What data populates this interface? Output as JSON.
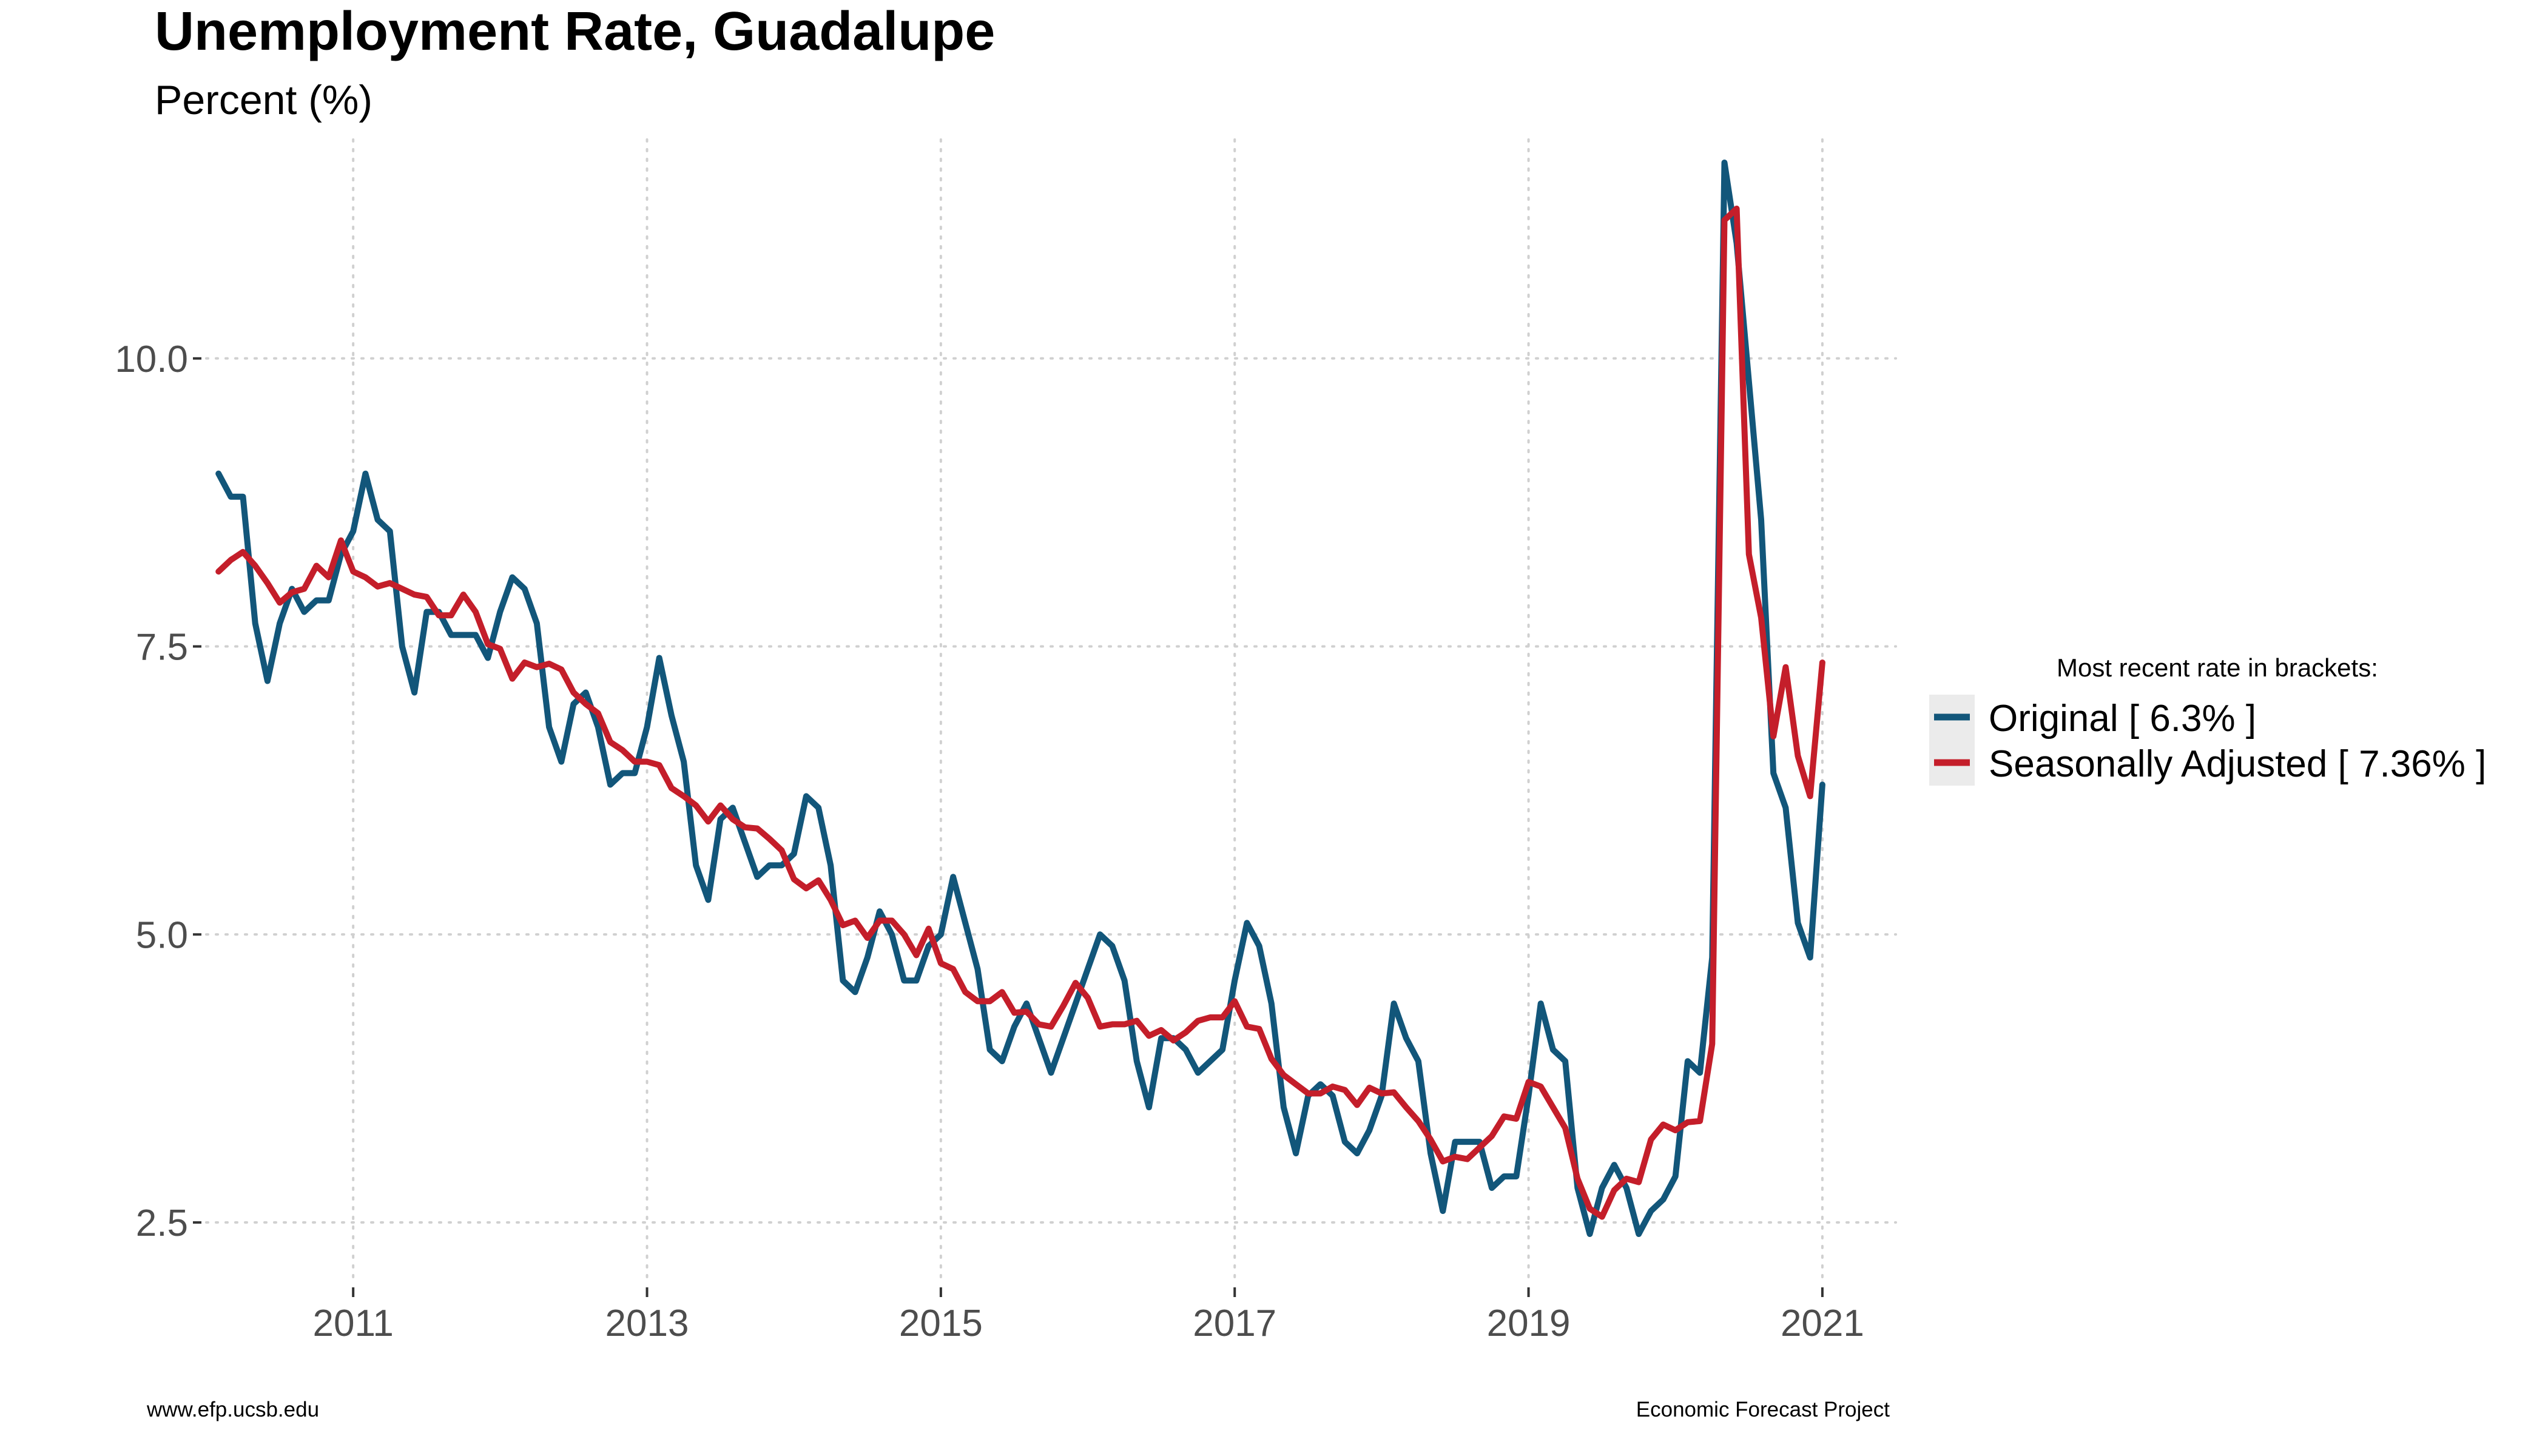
{
  "chart_data": {
    "type": "line",
    "title": "Unemployment Rate, Guadalupe",
    "subtitle": "Percent (%)",
    "xlabel": "",
    "ylabel": "",
    "xlim": [
      2010.0,
      2021.5
    ],
    "ylim": [
      2.0,
      11.9
    ],
    "x_ticks": [
      2011,
      2013,
      2015,
      2017,
      2019,
      2021
    ],
    "x_tick_labels": [
      "2011",
      "2013",
      "2015",
      "2017",
      "2019",
      "2021"
    ],
    "y_ticks": [
      2.5,
      5.0,
      7.5,
      10.0
    ],
    "y_tick_labels": [
      "2.5",
      "5.0",
      "7.5",
      "10.0"
    ],
    "grid": true,
    "legend_title": "Most recent rate in brackets:",
    "legend_position": "right",
    "x_start": 2010.0,
    "x_step": 0.0833333,
    "series": [
      {
        "name": "Original [ 6.3% ]",
        "color": "#12567a",
        "values": [
          9.0,
          8.8,
          8.8,
          7.7,
          7.2,
          7.7,
          8.0,
          7.8,
          7.9,
          7.9,
          8.3,
          8.5,
          9.0,
          8.6,
          8.5,
          7.5,
          7.1,
          7.8,
          7.8,
          7.6,
          7.6,
          7.6,
          7.4,
          7.8,
          8.1,
          8.0,
          7.7,
          6.8,
          6.5,
          7.0,
          7.1,
          6.8,
          6.3,
          6.4,
          6.4,
          6.8,
          7.4,
          6.9,
          6.5,
          5.6,
          5.3,
          6.0,
          6.1,
          5.8,
          5.5,
          5.6,
          5.6,
          5.7,
          6.2,
          6.1,
          5.6,
          4.6,
          4.5,
          4.8,
          5.2,
          5.0,
          4.6,
          4.6,
          4.9,
          5.0,
          5.5,
          5.1,
          4.7,
          4.0,
          3.9,
          4.2,
          4.4,
          4.1,
          3.8,
          4.1,
          4.4,
          4.7,
          5.0,
          4.9,
          4.6,
          3.9,
          3.5,
          4.1,
          4.1,
          4.0,
          3.8,
          3.9,
          4.0,
          4.6,
          5.1,
          4.9,
          4.4,
          3.5,
          3.1,
          3.6,
          3.7,
          3.6,
          3.2,
          3.1,
          3.3,
          3.6,
          4.4,
          4.1,
          3.9,
          3.1,
          2.6,
          3.2,
          3.2,
          3.2,
          2.8,
          2.9,
          2.9,
          3.6,
          4.4,
          4.0,
          3.9,
          2.8,
          2.4,
          2.8,
          3.0,
          2.8,
          2.4,
          2.6,
          2.7,
          2.9,
          3.9,
          3.8,
          4.8,
          11.7,
          11.0,
          9.8,
          8.6,
          6.4,
          6.1,
          5.1,
          4.8,
          6.3
        ]
      },
      {
        "name": "Seasonally Adjusted [ 7.36% ]",
        "color": "#c41e2a",
        "values": [
          8.15,
          8.25,
          8.32,
          8.2,
          8.05,
          7.88,
          7.97,
          8.0,
          8.2,
          8.1,
          8.42,
          8.15,
          8.1,
          8.02,
          8.05,
          8.0,
          7.95,
          7.93,
          7.77,
          7.77,
          7.95,
          7.8,
          7.52,
          7.48,
          7.22,
          7.36,
          7.32,
          7.35,
          7.3,
          7.1,
          7.0,
          6.92,
          6.67,
          6.6,
          6.5,
          6.5,
          6.47,
          6.27,
          6.2,
          6.12,
          5.98,
          6.12,
          6.0,
          5.93,
          5.92,
          5.83,
          5.73,
          5.48,
          5.4,
          5.47,
          5.3,
          5.08,
          5.12,
          4.97,
          5.12,
          5.12,
          5.0,
          4.82,
          5.05,
          4.75,
          4.7,
          4.5,
          4.42,
          4.42,
          4.5,
          4.32,
          4.33,
          4.22,
          4.2,
          4.38,
          4.58,
          4.45,
          4.2,
          4.22,
          4.22,
          4.25,
          4.12,
          4.17,
          4.08,
          4.15,
          4.25,
          4.28,
          4.28,
          4.42,
          4.2,
          4.18,
          3.92,
          3.78,
          3.7,
          3.62,
          3.62,
          3.68,
          3.65,
          3.52,
          3.67,
          3.62,
          3.63,
          3.5,
          3.38,
          3.22,
          3.03,
          3.07,
          3.05,
          3.15,
          3.25,
          3.42,
          3.4,
          3.72,
          3.68,
          3.5,
          3.32,
          2.88,
          2.62,
          2.55,
          2.78,
          2.88,
          2.85,
          3.22,
          3.35,
          3.3,
          3.37,
          3.38,
          4.05,
          11.2,
          11.3,
          8.3,
          7.75,
          6.72,
          7.32,
          6.55,
          6.2,
          7.36
        ]
      }
    ]
  },
  "caption_left": "www.efp.ucsb.edu",
  "caption_right": "Economic Forecast Project"
}
